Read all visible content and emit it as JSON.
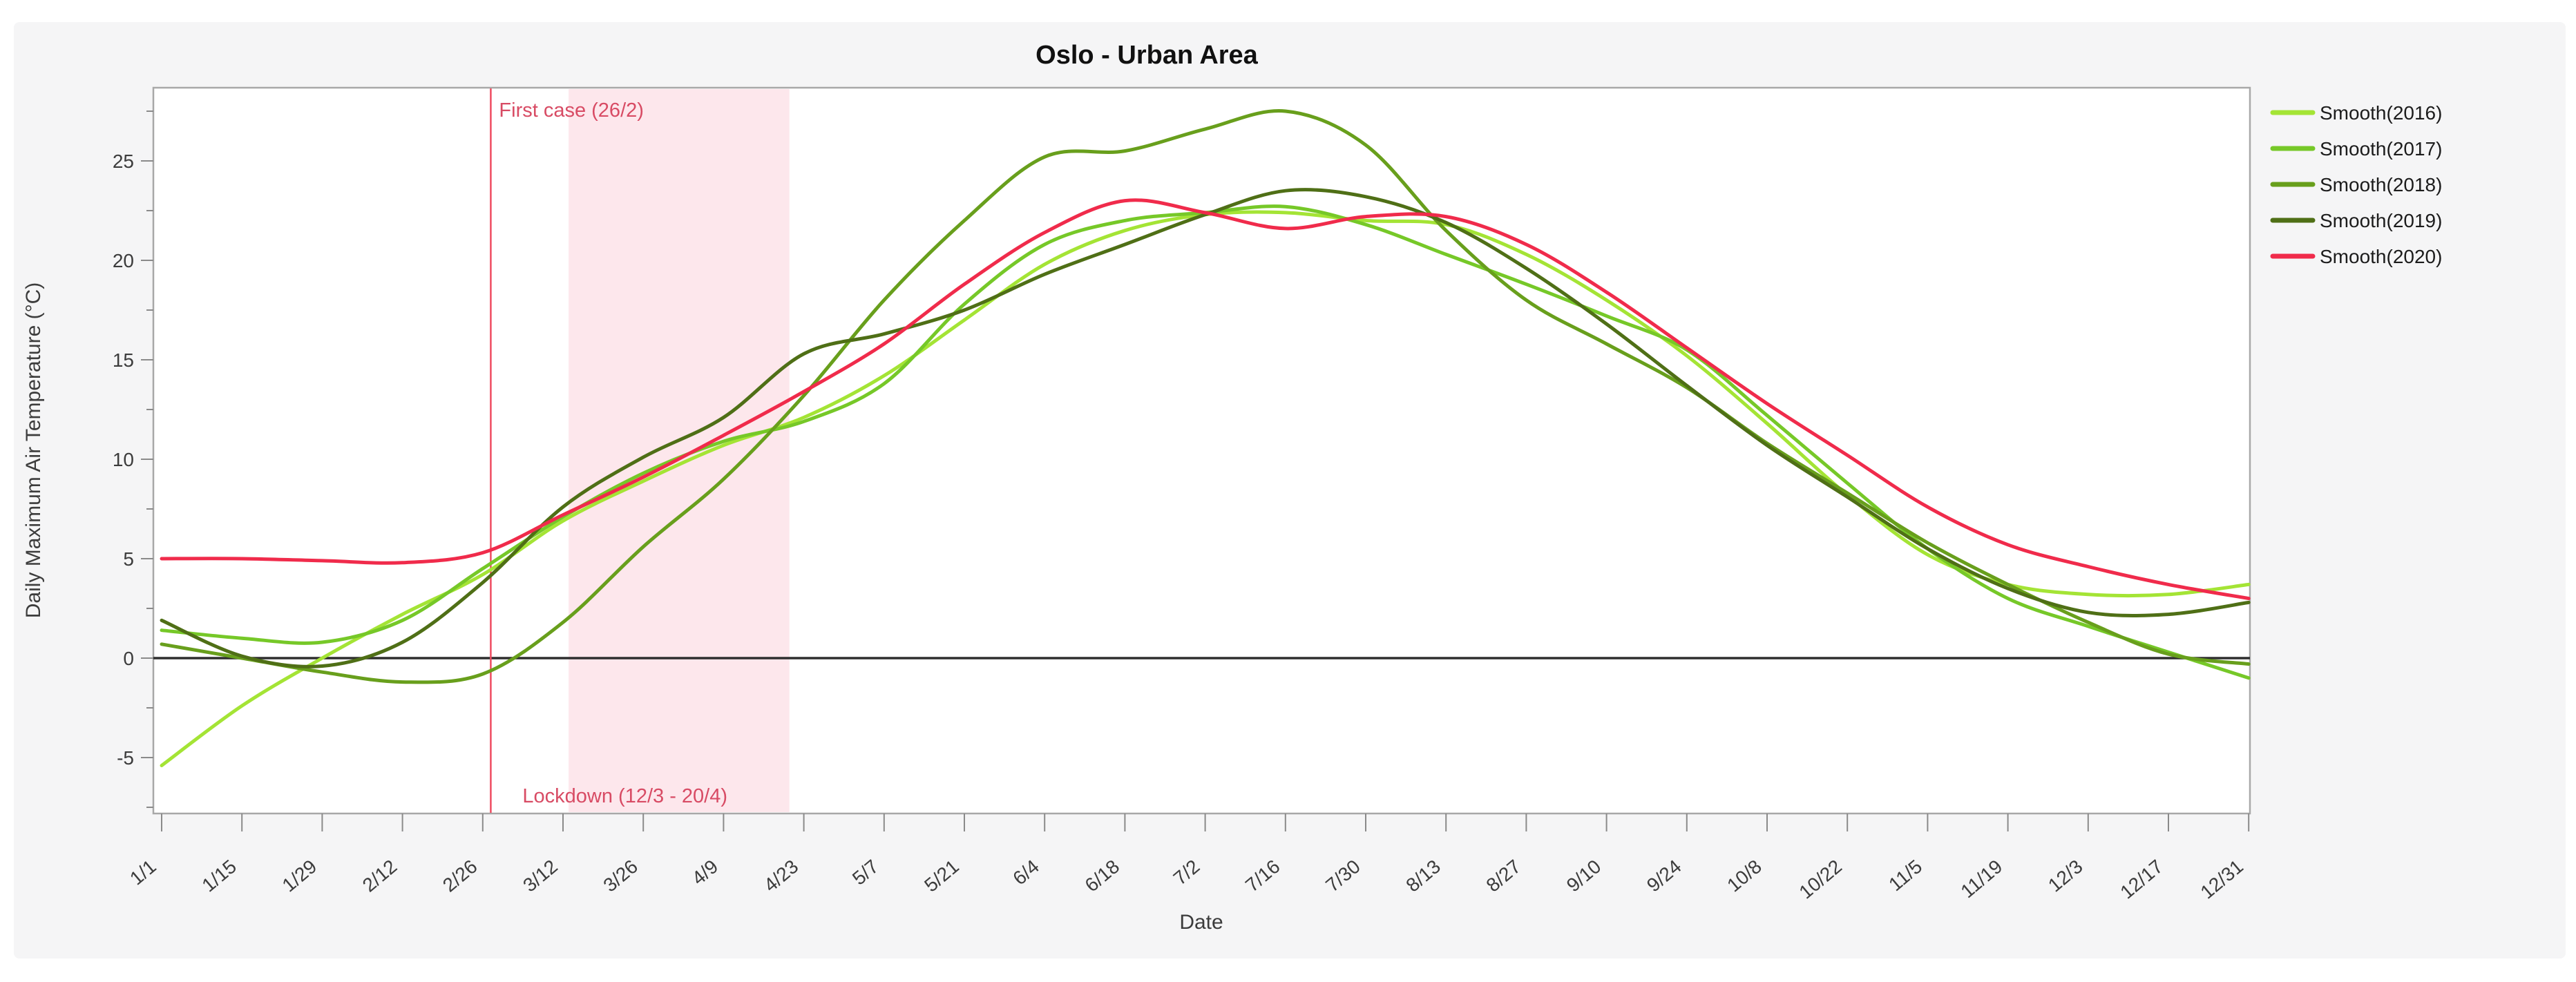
{
  "chart_data": {
    "type": "line",
    "title": "Oslo - Urban Area",
    "xlabel": "Date",
    "ylabel": "Daily Maximum Air Temperature (°C)",
    "x_tick_labels": [
      "1/1",
      "1/15",
      "1/29",
      "2/12",
      "2/26",
      "3/12",
      "3/26",
      "4/9",
      "4/23",
      "5/7",
      "5/21",
      "6/4",
      "6/18",
      "7/2",
      "7/16",
      "7/30",
      "8/13",
      "8/27",
      "9/10",
      "9/24",
      "10/8",
      "10/22",
      "11/5",
      "11/19",
      "12/3",
      "12/17",
      "12/31"
    ],
    "y_tick_values": [
      -5,
      0,
      5,
      10,
      15,
      20,
      25
    ],
    "y_minor_step": 2.5,
    "ylim": [
      -7.5,
      28.5
    ],
    "grid": false,
    "zero_line": true,
    "legend_position": "right-top-outside",
    "series": [
      {
        "name": "Smooth(2016)",
        "color": "#a4e435",
        "values": [
          -5.4,
          -2.4,
          0.0,
          2.2,
          4.2,
          6.9,
          8.9,
          10.7,
          12.1,
          14.2,
          17.0,
          19.8,
          21.5,
          22.3,
          22.4,
          22.0,
          21.8,
          20.3,
          18.0,
          15.2,
          11.8,
          8.2,
          5.2,
          3.7,
          3.2,
          3.2,
          3.7
        ]
      },
      {
        "name": "Smooth(2017)",
        "color": "#76c828",
        "values": [
          1.4,
          1.0,
          0.8,
          1.9,
          4.5,
          7.1,
          9.3,
          10.9,
          11.9,
          13.8,
          17.8,
          20.8,
          22.0,
          22.4,
          22.7,
          21.8,
          20.3,
          18.8,
          17.2,
          15.5,
          12.2,
          8.8,
          5.5,
          3.0,
          1.6,
          0.3,
          -1.0
        ]
      },
      {
        "name": "Smooth(2018)",
        "color": "#689f1c",
        "values": [
          0.7,
          0.0,
          -0.7,
          -1.2,
          -0.8,
          1.8,
          5.6,
          9.0,
          13.2,
          18.0,
          22.0,
          25.2,
          25.5,
          26.6,
          27.5,
          25.8,
          21.5,
          18.0,
          15.8,
          13.6,
          10.8,
          8.3,
          5.8,
          3.7,
          1.8,
          0.2,
          -0.3
        ]
      },
      {
        "name": "Smooth(2019)",
        "color": "#4f6f16",
        "values": [
          1.9,
          0.1,
          -0.4,
          0.8,
          3.8,
          7.6,
          10.1,
          12.1,
          15.3,
          16.3,
          17.5,
          19.3,
          20.8,
          22.3,
          23.5,
          23.2,
          21.9,
          19.6,
          16.8,
          13.7,
          10.7,
          8.1,
          5.5,
          3.5,
          2.3,
          2.2,
          2.8
        ]
      },
      {
        "name": "Smooth(2020)",
        "color": "#f02b4b",
        "values": [
          5.0,
          5.0,
          4.9,
          4.8,
          5.3,
          7.2,
          9.1,
          11.2,
          13.4,
          15.8,
          18.8,
          21.4,
          23.0,
          22.4,
          21.6,
          22.2,
          22.2,
          20.8,
          18.4,
          15.6,
          12.8,
          10.2,
          7.6,
          5.7,
          4.6,
          3.7,
          3.0
        ]
      }
    ],
    "annotations": {
      "vline": {
        "label": "First case (26/2)",
        "x_frac": 4.1,
        "color": "#ee4b60"
      },
      "band": {
        "label": "Lockdown (12/3 - 20/4)",
        "x_start_frac": 5.07,
        "x_end_frac": 7.82,
        "fill": "#fbdde3"
      }
    }
  }
}
